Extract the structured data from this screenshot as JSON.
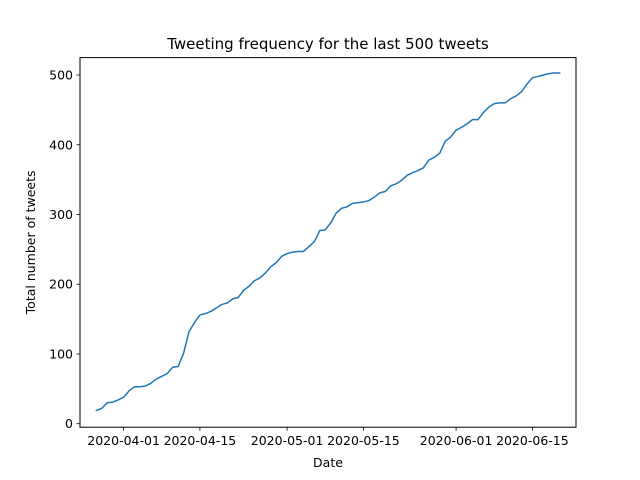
{
  "chart_data": {
    "type": "line",
    "title": "Tweeting frequency for the last 500 tweets",
    "xlabel": "Date",
    "ylabel": "Total number of tweets",
    "x_ticks": [
      "2020-04-01",
      "2020-04-15",
      "2020-05-01",
      "2020-05-15",
      "2020-06-01",
      "2020-06-15"
    ],
    "y_ticks": [
      0,
      100,
      200,
      300,
      400,
      500
    ],
    "xlim": [
      "2020-03-24",
      "2020-06-23"
    ],
    "ylim": [
      -5,
      525
    ],
    "grid": false,
    "line_color": "#1f77b4",
    "series": [
      {
        "x": [
          "2020-03-27",
          "2020-03-28",
          "2020-03-29",
          "2020-03-30",
          "2020-03-31",
          "2020-04-01",
          "2020-04-02",
          "2020-04-03",
          "2020-04-04",
          "2020-04-05",
          "2020-04-06",
          "2020-04-07",
          "2020-04-08",
          "2020-04-09",
          "2020-04-10",
          "2020-04-11",
          "2020-04-12",
          "2020-04-13",
          "2020-04-14",
          "2020-04-15",
          "2020-04-16",
          "2020-04-17",
          "2020-04-18",
          "2020-04-19",
          "2020-04-20",
          "2020-04-21",
          "2020-04-22",
          "2020-04-23",
          "2020-04-24",
          "2020-04-25",
          "2020-04-26",
          "2020-04-27",
          "2020-04-28",
          "2020-04-29",
          "2020-04-30",
          "2020-05-01",
          "2020-05-02",
          "2020-05-03",
          "2020-05-04",
          "2020-05-05",
          "2020-05-06",
          "2020-05-07",
          "2020-05-08",
          "2020-05-09",
          "2020-05-10",
          "2020-05-11",
          "2020-05-12",
          "2020-05-13",
          "2020-05-14",
          "2020-05-15",
          "2020-05-16",
          "2020-05-17",
          "2020-05-18",
          "2020-05-19",
          "2020-05-20",
          "2020-05-21",
          "2020-05-22",
          "2020-05-23",
          "2020-05-24",
          "2020-05-25",
          "2020-05-26",
          "2020-05-27",
          "2020-05-28",
          "2020-05-29",
          "2020-05-30",
          "2020-05-31",
          "2020-06-01",
          "2020-06-02",
          "2020-06-03",
          "2020-06-04",
          "2020-06-05",
          "2020-06-06",
          "2020-06-07",
          "2020-06-08",
          "2020-06-09",
          "2020-06-10",
          "2020-06-11",
          "2020-06-12",
          "2020-06-13",
          "2020-06-14",
          "2020-06-15",
          "2020-06-16",
          "2020-06-17",
          "2020-06-18",
          "2020-06-19",
          "2020-06-20"
        ],
        "y": [
          19,
          22,
          30,
          31,
          34,
          38,
          47,
          53,
          53,
          54,
          58,
          64,
          68,
          72,
          81,
          82,
          101,
          132,
          145,
          156,
          158,
          161,
          166,
          171,
          173,
          179,
          181,
          191,
          197,
          205,
          209,
          216,
          225,
          231,
          240,
          244,
          246,
          247,
          247,
          254,
          261,
          277,
          278,
          288,
          302,
          309,
          311,
          316,
          317,
          318,
          320,
          325,
          331,
          333,
          341,
          344,
          349,
          356,
          360,
          363,
          367,
          378,
          382,
          388,
          405,
          411,
          421,
          425,
          430,
          436,
          436,
          446,
          454,
          459,
          460,
          460,
          466,
          470,
          476,
          487,
          496,
          498,
          500,
          502,
          503,
          503
        ]
      }
    ]
  }
}
